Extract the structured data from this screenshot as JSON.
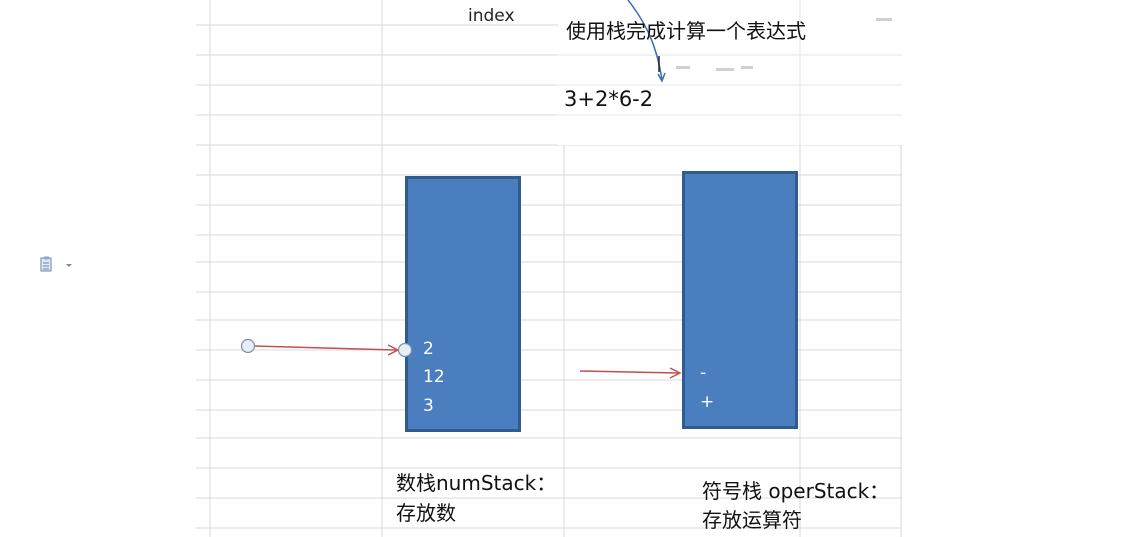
{
  "header": {
    "index_label": "index",
    "title": "使用栈完成计算一个表达式",
    "expression": "3+2*6-2"
  },
  "num_stack": {
    "items": [
      "2",
      "12",
      "3"
    ],
    "label_line1": "数栈numStack：",
    "label_line2": "存放数"
  },
  "oper_stack": {
    "items": [
      "-",
      "+"
    ],
    "label_line1": "符号栈 operStack：",
    "label_line2": "存放运算符"
  },
  "icons": {
    "paste_options": "paste-options-icon"
  },
  "colors": {
    "stack_fill": "#4a7ebf",
    "stack_border": "#2f5b8f",
    "arrow": "#c0504d",
    "grid": "#d9d9d9",
    "pen_stroke": "#3a6fb5"
  }
}
